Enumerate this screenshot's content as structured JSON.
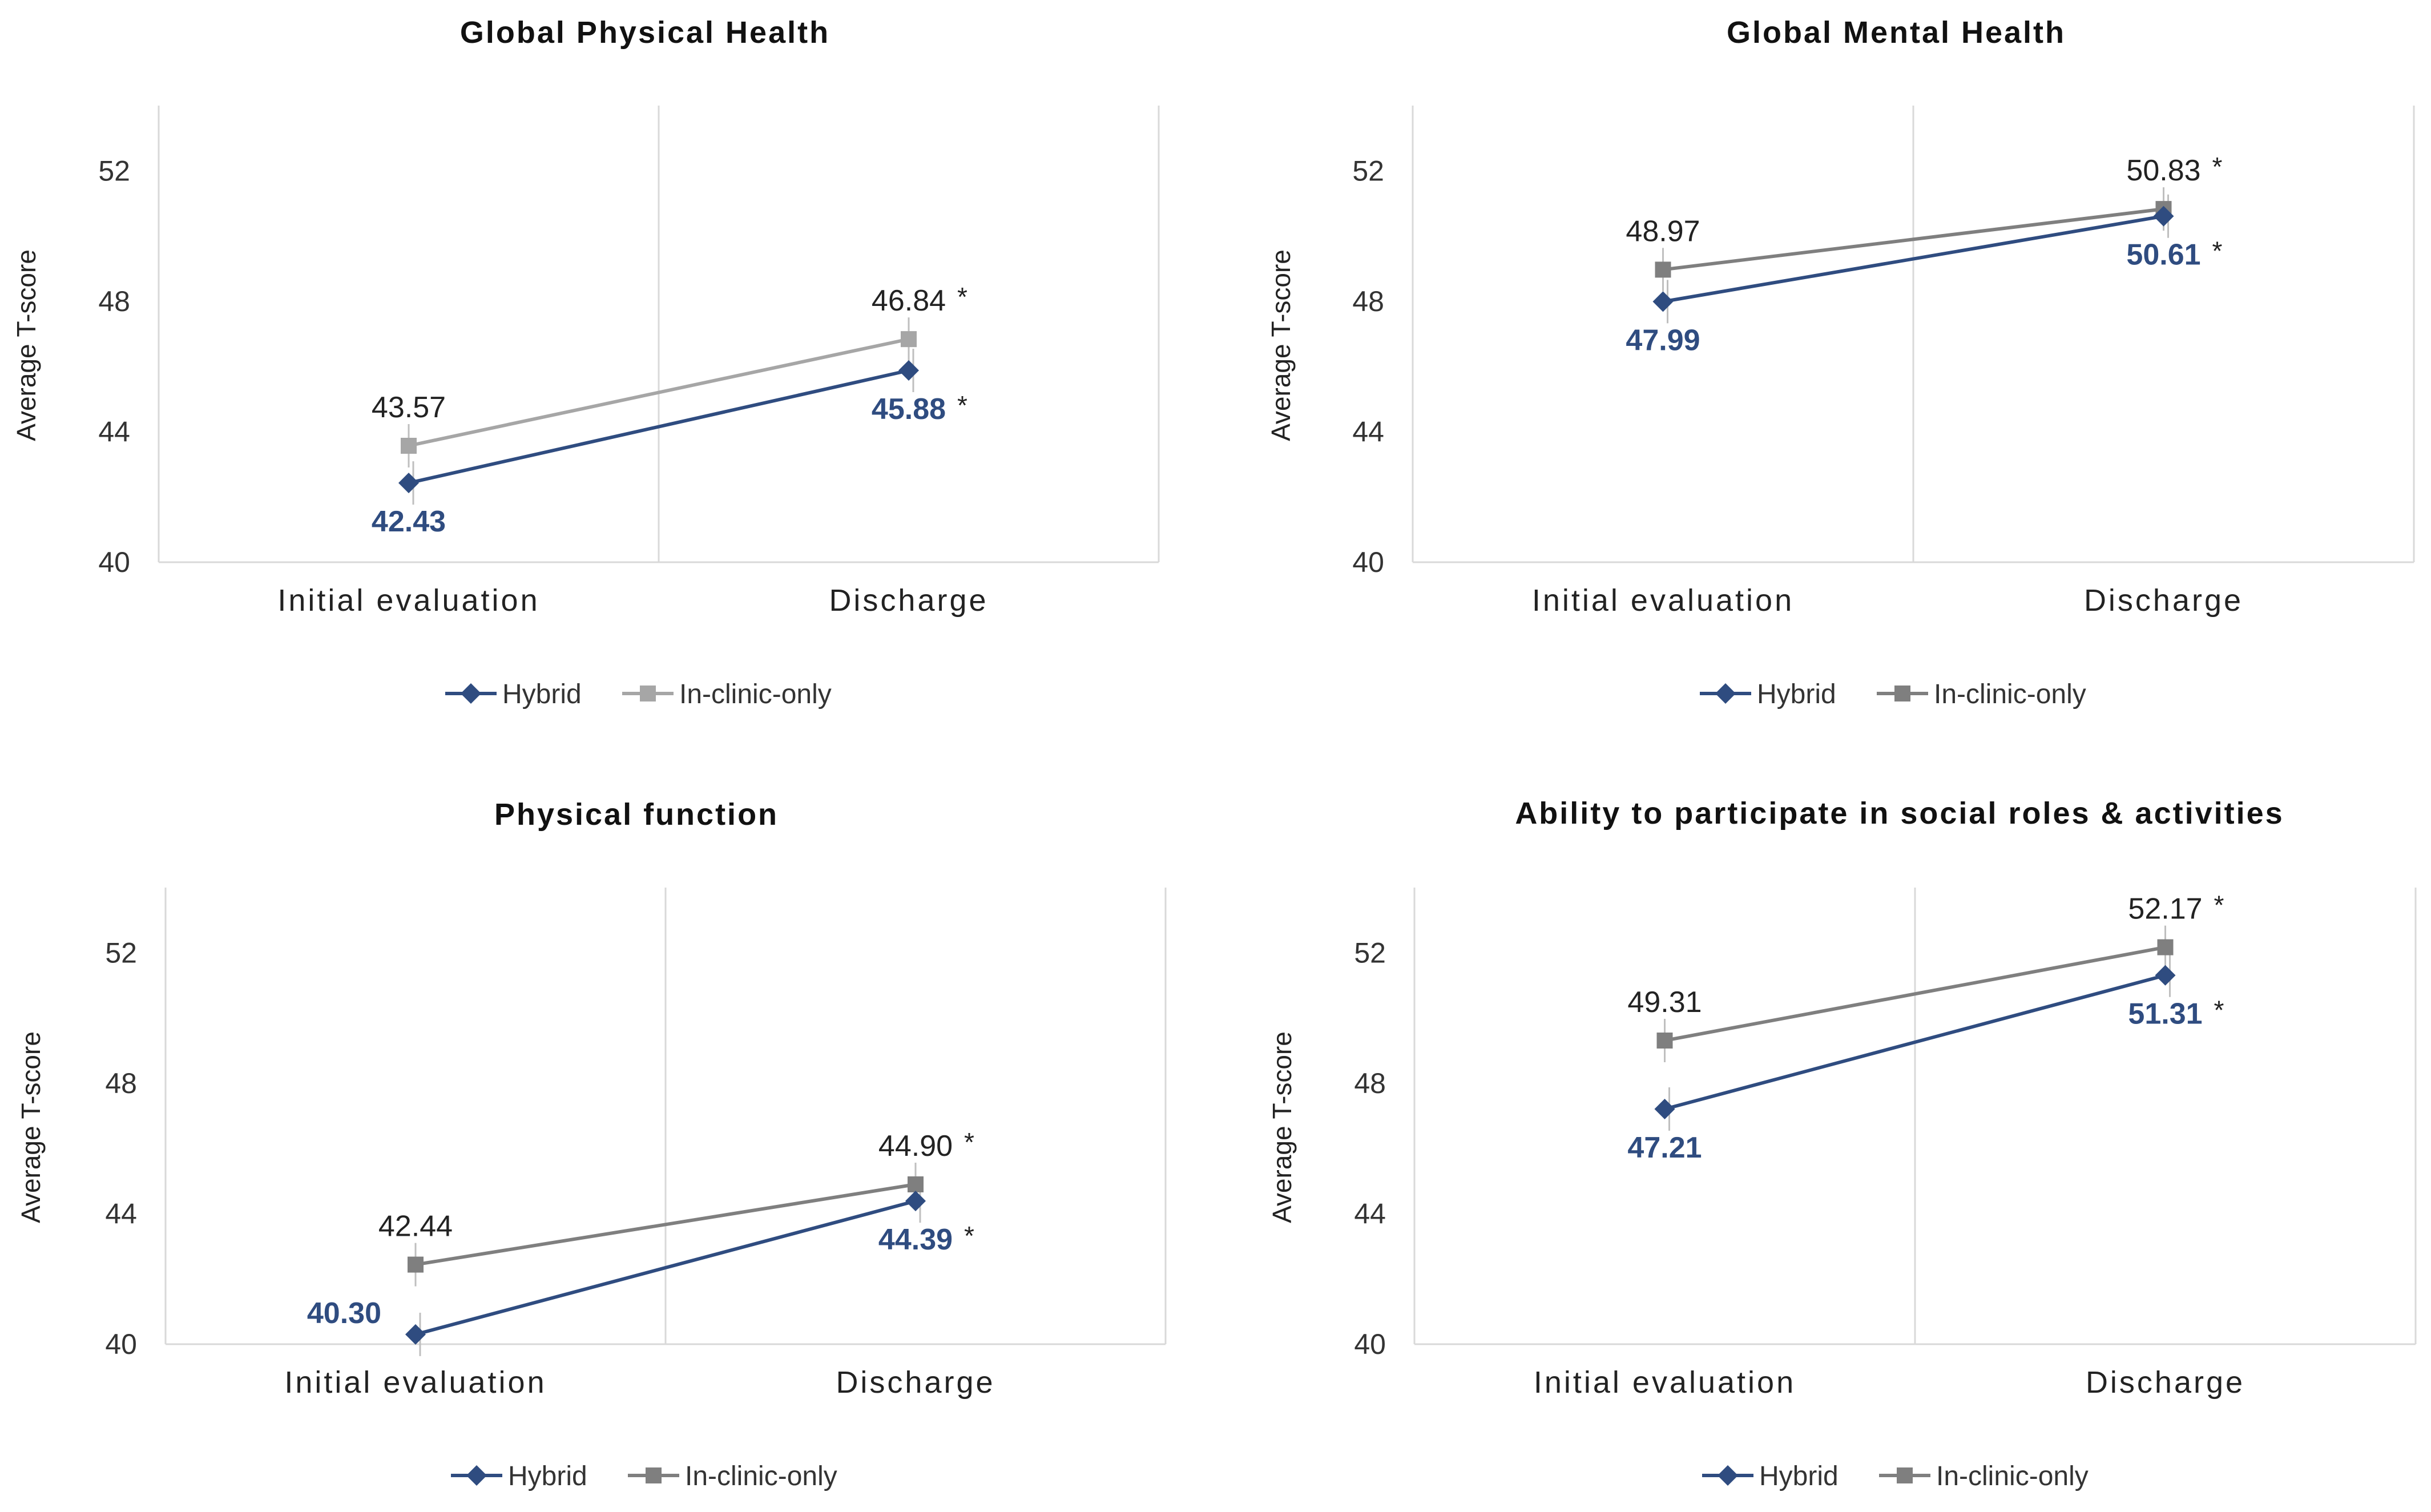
{
  "colors": {
    "hybrid": "#2F4C80",
    "in_clinic_panel1": "#A6A6A6",
    "in_clinic": "#7F7F7F",
    "gridline": "#D9D9D9",
    "errorbar": "#BFBFBF"
  },
  "chart_data": [
    {
      "type": "line",
      "title": "Global Physical Health",
      "ylabel": "Average T-score",
      "categories": [
        "Initial evaluation",
        "Discharge"
      ],
      "ylim": [
        40,
        54
      ],
      "yticks": [
        40,
        44,
        48,
        52
      ],
      "legend": "bottom",
      "series": [
        {
          "name": "Hybrid",
          "marker": "diamond",
          "values": [
            42.43,
            45.88
          ],
          "labels": [
            "42.43",
            "45.88"
          ],
          "stars": [
            "",
            "*"
          ]
        },
        {
          "name": "In-clinic-only",
          "marker": "square",
          "values": [
            43.57,
            46.84
          ],
          "labels": [
            "43.57",
            "46.84"
          ],
          "stars": [
            "",
            "*"
          ]
        }
      ],
      "legend_labels": [
        "Hybrid",
        "In-clinic-only"
      ]
    },
    {
      "type": "line",
      "title": "Global Mental Health",
      "ylabel": "Average T-score",
      "categories": [
        "Initial evaluation",
        "Discharge"
      ],
      "ylim": [
        40,
        54
      ],
      "yticks": [
        40,
        44,
        48,
        52
      ],
      "legend": "bottom",
      "series": [
        {
          "name": "Hybrid",
          "marker": "diamond",
          "values": [
            47.99,
            50.61
          ],
          "labels": [
            "47.99",
            "50.61"
          ],
          "stars": [
            "",
            "*"
          ]
        },
        {
          "name": "In-clinic-only",
          "marker": "square",
          "values": [
            48.97,
            50.83
          ],
          "labels": [
            "48.97",
            "50.83"
          ],
          "stars": [
            "",
            "*"
          ]
        }
      ],
      "legend_labels": [
        "Hybrid",
        "In-clinic-only"
      ]
    },
    {
      "type": "line",
      "title": "Physical function",
      "ylabel": "Average T-score",
      "categories": [
        "Initial evaluation",
        "Discharge"
      ],
      "ylim": [
        40,
        54
      ],
      "yticks": [
        40,
        44,
        48,
        52
      ],
      "legend": "bottom",
      "series": [
        {
          "name": "Hybrid",
          "marker": "diamond",
          "values": [
            40.3,
            44.39
          ],
          "labels": [
            "40.30",
            "44.39"
          ],
          "stars": [
            "",
            "*"
          ]
        },
        {
          "name": "In-clinic-only",
          "marker": "square",
          "values": [
            42.44,
            44.9
          ],
          "labels": [
            "42.44",
            "44.90"
          ],
          "stars": [
            "",
            "*"
          ]
        }
      ],
      "legend_labels": [
        "Hybrid",
        "In-clinic-only"
      ]
    },
    {
      "type": "line",
      "title": "Ability to participate in social roles & activities",
      "ylabel": "Average T-score",
      "categories": [
        "Initial evaluation",
        "Discharge"
      ],
      "ylim": [
        40,
        54
      ],
      "yticks": [
        40,
        44,
        48,
        52
      ],
      "legend": "bottom",
      "series": [
        {
          "name": "Hybrid",
          "marker": "diamond",
          "values": [
            47.21,
            51.31
          ],
          "labels": [
            "47.21",
            "51.31"
          ],
          "stars": [
            "",
            "*"
          ]
        },
        {
          "name": "In-clinic-only",
          "marker": "square",
          "values": [
            49.31,
            52.17
          ],
          "labels": [
            "49.31",
            "52.17"
          ],
          "stars": [
            "",
            "*"
          ]
        }
      ],
      "legend_labels": [
        "Hybrid",
        "In-clinic-only"
      ]
    }
  ]
}
